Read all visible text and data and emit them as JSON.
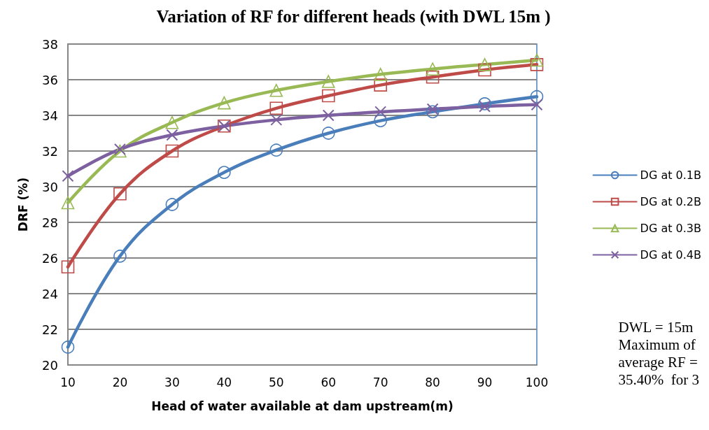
{
  "chart_data": {
    "type": "line",
    "title": "Variation of RF for different heads (with DWL 15m )",
    "xlabel": "Head of water available at dam upstream(m)",
    "ylabel": "DRF (%)",
    "categories": [
      "10",
      "20",
      "30",
      "40",
      "50",
      "60",
      "70",
      "80",
      "90",
      "100"
    ],
    "series": [
      {
        "name": "DG at 0.1B",
        "color": "#4a7ebb",
        "marker": "circle",
        "values": [
          21.0,
          26.1,
          29.0,
          30.8,
          32.05,
          33.0,
          33.7,
          34.2,
          34.65,
          35.05
        ]
      },
      {
        "name": "DG at 0.2B",
        "color": "#be4b48",
        "marker": "square",
        "values": [
          25.5,
          29.6,
          32.0,
          33.4,
          34.4,
          35.1,
          35.7,
          36.15,
          36.55,
          36.85
        ]
      },
      {
        "name": "DG at 0.3B",
        "color": "#98b954",
        "marker": "triangle",
        "values": [
          29.1,
          32.0,
          33.6,
          34.7,
          35.4,
          35.9,
          36.3,
          36.6,
          36.85,
          37.1
        ]
      },
      {
        "name": "DG at 0.4B",
        "color": "#7d60a0",
        "marker": "cross",
        "values": [
          30.6,
          32.1,
          32.9,
          33.4,
          33.75,
          34.0,
          34.2,
          34.35,
          34.5,
          34.6
        ]
      }
    ],
    "ylim": [
      20,
      38
    ],
    "yticks": [
      20,
      22,
      24,
      26,
      28,
      30,
      32,
      34,
      36,
      38
    ],
    "grid": "y",
    "legend": "right",
    "line_style": "solid",
    "annotations": [
      "DWL = 15m\nMaximum of\naverage RF =\n35.40%  for 3"
    ]
  }
}
